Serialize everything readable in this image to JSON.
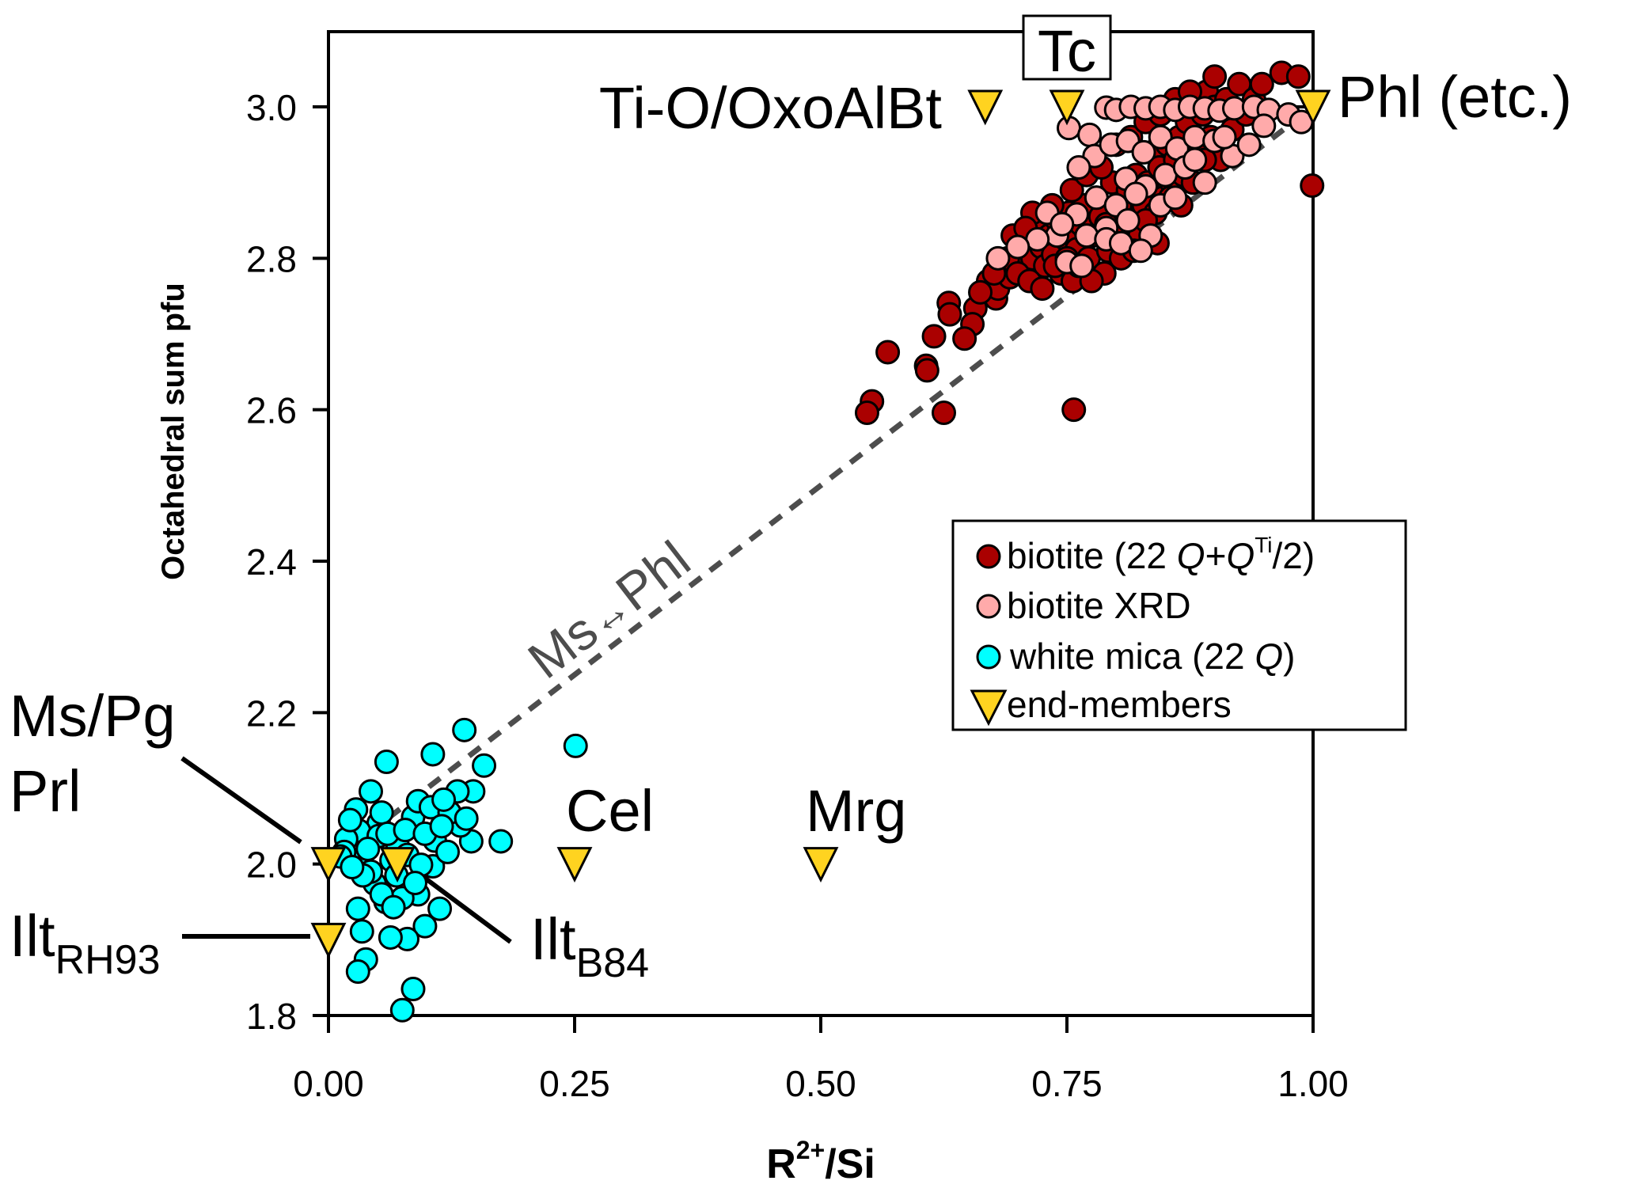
{
  "chart_data": {
    "type": "scatter",
    "title": "",
    "xlabel": "R2+/Si",
    "xlabel_main": "R",
    "xlabel_sup": "2+",
    "xlabel_tail": "/Si",
    "ylabel": "Octahedral sum pfu",
    "xlim": [
      0.0,
      1.0
    ],
    "ylim": [
      1.8,
      3.0
    ],
    "x_ticks": [
      0.0,
      0.25,
      0.5,
      0.75,
      1.0
    ],
    "x_tick_labels": [
      "0.00",
      "0.25",
      "0.50",
      "0.75",
      "1.00"
    ],
    "y_ticks": [
      1.8,
      2.0,
      2.2,
      2.4,
      2.6,
      2.8,
      3.0
    ],
    "y_tick_labels": [
      "1.8",
      "2.0",
      "2.2",
      "2.4",
      "2.6",
      "2.8",
      "3.0"
    ],
    "grid": false,
    "legend_position": "center-right",
    "legend": [
      {
        "key": "biotite",
        "text": "biotite (22 ",
        "italic": "Q",
        "text2": "+",
        "italic2": "Q",
        "sup": "Ti",
        "text3": "/2)",
        "marker": "circle",
        "color": "#AA0000"
      },
      {
        "key": "biotite_xrd",
        "text": "biotite XRD",
        "marker": "circle",
        "color": "#FFAAAA"
      },
      {
        "key": "white_mica",
        "text": "white mica (22 ",
        "italic": "Q",
        "text2": ")",
        "marker": "circle",
        "color": "#00FFFF"
      },
      {
        "key": "end_members",
        "text": "end-members",
        "marker": "triangle-down",
        "color": "#FFD320"
      }
    ],
    "trend_line": {
      "label_a": "Ms",
      "arrow": "↔",
      "label_b": "Phl",
      "from": [
        0.0,
        2.0
      ],
      "to": [
        1.0,
        3.0
      ],
      "color": "#4d4d4d",
      "style": "dashed"
    },
    "end_members": [
      {
        "name": "Ms/Pg Prl",
        "x": 0.0,
        "y": 2.0
      },
      {
        "name": "Ilt_B84",
        "x": 0.07,
        "y": 2.0
      },
      {
        "name": "Ilt_RH93",
        "x": 0.0,
        "y": 1.9
      },
      {
        "name": "Cel",
        "x": 0.25,
        "y": 2.0
      },
      {
        "name": "Mrg",
        "x": 0.5,
        "y": 2.0
      },
      {
        "name": "Ti-O/OxoAlBt",
        "x": 0.667,
        "y": 3.0
      },
      {
        "name": "Tc",
        "x": 0.75,
        "y": 3.0
      },
      {
        "name": "Phl (etc.)",
        "x": 1.0,
        "y": 3.0
      }
    ],
    "annotations": {
      "ms_pg": "Ms/Pg",
      "prl": "Prl",
      "ilt_rh93_main": "Ilt",
      "ilt_rh93_sub": "RH93",
      "ilt_b84_main": "Ilt",
      "ilt_b84_sub": "B84",
      "cel": "Cel",
      "mrg": "Mrg",
      "tioxo": "Ti-O/OxoAlBt",
      "tc": "Tc",
      "phl": "Phl (etc.)"
    },
    "series": [
      {
        "name": "white mica (22 Q)",
        "color": "#00FFFF",
        "points": [
          [
            0.138,
            2.177
          ],
          [
            0.106,
            2.145
          ],
          [
            0.059,
            2.135
          ],
          [
            0.251,
            2.156
          ],
          [
            0.158,
            2.13
          ],
          [
            0.147,
            2.096
          ],
          [
            0.131,
            2.096
          ],
          [
            0.043,
            2.096
          ],
          [
            0.175,
            2.03
          ],
          [
            0.145,
            2.03
          ],
          [
            0.134,
            2.051
          ],
          [
            0.086,
            1.835
          ],
          [
            0.075,
            1.807
          ],
          [
            0.038,
            1.874
          ],
          [
            0.03,
            1.858
          ],
          [
            0.113,
            1.941
          ],
          [
            0.098,
            1.918
          ],
          [
            0.08,
            1.901
          ],
          [
            0.063,
            1.903
          ],
          [
            0.034,
            1.911
          ],
          [
            0.03,
            1.941
          ],
          [
            0.058,
            1.95
          ],
          [
            0.091,
            1.96
          ],
          [
            0.075,
            1.955
          ],
          [
            0.047,
            1.974
          ],
          [
            0.106,
            1.997
          ],
          [
            0.027,
            2.004
          ],
          [
            0.043,
            1.99
          ],
          [
            0.108,
            2.031
          ],
          [
            0.086,
            2.062
          ],
          [
            0.091,
            2.083
          ],
          [
            0.104,
            2.075
          ],
          [
            0.123,
            2.068
          ],
          [
            0.051,
            2.054
          ],
          [
            0.031,
            2.044
          ],
          [
            0.028,
            2.072
          ],
          [
            0.054,
            2.068
          ],
          [
            0.07,
            2.026
          ],
          [
            0.051,
            2.037
          ],
          [
            0.018,
            2.033
          ],
          [
            0.016,
            2.016
          ],
          [
            0.064,
            2.005
          ],
          [
            0.08,
            2.012
          ],
          [
            0.094,
            1.999
          ],
          [
            0.121,
            2.016
          ],
          [
            0.054,
            1.96
          ],
          [
            0.066,
            1.943
          ],
          [
            0.012,
            2.01
          ],
          [
            0.022,
            2.058
          ],
          [
            0.04,
            2.02
          ],
          [
            0.06,
            2.04
          ],
          [
            0.078,
            2.045
          ],
          [
            0.098,
            2.04
          ],
          [
            0.115,
            2.05
          ],
          [
            0.035,
            1.985
          ],
          [
            0.069,
            1.985
          ],
          [
            0.088,
            1.975
          ],
          [
            0.024,
            1.996
          ],
          [
            0.14,
            2.06
          ],
          [
            0.117,
            2.085
          ]
        ]
      },
      {
        "name": "biotite (22 Q+QTi/2)",
        "color": "#AA0000",
        "points": [
          [
            0.552,
            2.611
          ],
          [
            0.547,
            2.596
          ],
          [
            0.568,
            2.676
          ],
          [
            0.607,
            2.658
          ],
          [
            0.608,
            2.652
          ],
          [
            0.625,
            2.596
          ],
          [
            0.615,
            2.697
          ],
          [
            0.63,
            2.741
          ],
          [
            0.631,
            2.726
          ],
          [
            0.657,
            2.734
          ],
          [
            0.654,
            2.713
          ],
          [
            0.646,
            2.694
          ],
          [
            0.678,
            2.747
          ],
          [
            0.757,
            2.6
          ],
          [
            0.999,
            2.896
          ],
          [
            0.67,
            2.77
          ],
          [
            0.68,
            2.76
          ],
          [
            0.688,
            2.79
          ],
          [
            0.692,
            2.775
          ],
          [
            0.7,
            2.81
          ],
          [
            0.705,
            2.795
          ],
          [
            0.71,
            2.825
          ],
          [
            0.715,
            2.8
          ],
          [
            0.72,
            2.84
          ],
          [
            0.724,
            2.815
          ],
          [
            0.728,
            2.79
          ],
          [
            0.732,
            2.83
          ],
          [
            0.736,
            2.805
          ],
          [
            0.74,
            2.85
          ],
          [
            0.744,
            2.78
          ],
          [
            0.748,
            2.826
          ],
          [
            0.752,
            2.86
          ],
          [
            0.756,
            2.77
          ],
          [
            0.76,
            2.812
          ],
          [
            0.764,
            2.845
          ],
          [
            0.768,
            2.87
          ],
          [
            0.772,
            2.8
          ],
          [
            0.776,
            2.83
          ],
          [
            0.78,
            2.88
          ],
          [
            0.784,
            2.855
          ],
          [
            0.788,
            2.78
          ],
          [
            0.792,
            2.81
          ],
          [
            0.796,
            2.9
          ],
          [
            0.8,
            2.84
          ],
          [
            0.804,
            2.87
          ],
          [
            0.808,
            2.82
          ],
          [
            0.812,
            2.89
          ],
          [
            0.816,
            2.85
          ],
          [
            0.82,
            2.91
          ],
          [
            0.824,
            2.83
          ],
          [
            0.828,
            2.87
          ],
          [
            0.832,
            2.9
          ],
          [
            0.836,
            2.94
          ],
          [
            0.84,
            2.86
          ],
          [
            0.844,
            2.92
          ],
          [
            0.848,
            2.88
          ],
          [
            0.852,
            2.95
          ],
          [
            0.856,
            2.9
          ],
          [
            0.86,
            2.93
          ],
          [
            0.864,
            2.96
          ],
          [
            0.868,
            2.91
          ],
          [
            0.872,
            2.98
          ],
          [
            0.876,
            2.94
          ],
          [
            0.88,
            3.0
          ],
          [
            0.884,
            2.95
          ],
          [
            0.888,
            2.99
          ],
          [
            0.892,
            3.02
          ],
          [
            0.896,
            2.96
          ],
          [
            0.9,
            3.0
          ],
          [
            0.906,
            2.93
          ],
          [
            0.912,
            3.01
          ],
          [
            0.918,
            2.97
          ],
          [
            0.925,
            3.03
          ],
          [
            0.932,
            2.99
          ],
          [
            0.94,
            3.01
          ],
          [
            0.948,
            3.03
          ],
          [
            0.968,
            3.045
          ],
          [
            0.985,
            3.04
          ],
          [
            0.69,
            2.8
          ],
          [
            0.7,
            2.78
          ],
          [
            0.712,
            2.77
          ],
          [
            0.725,
            2.76
          ],
          [
            0.738,
            2.79
          ],
          [
            0.75,
            2.8
          ],
          [
            0.762,
            2.79
          ],
          [
            0.775,
            2.77
          ],
          [
            0.79,
            2.845
          ],
          [
            0.805,
            2.8
          ],
          [
            0.818,
            2.81
          ],
          [
            0.83,
            2.85
          ],
          [
            0.842,
            2.82
          ],
          [
            0.855,
            2.88
          ],
          [
            0.866,
            2.87
          ],
          [
            0.878,
            2.9
          ],
          [
            0.89,
            2.93
          ],
          [
            0.715,
            2.86
          ],
          [
            0.735,
            2.87
          ],
          [
            0.755,
            2.89
          ],
          [
            0.77,
            2.91
          ],
          [
            0.785,
            2.92
          ],
          [
            0.8,
            2.95
          ],
          [
            0.815,
            2.96
          ],
          [
            0.83,
            2.98
          ],
          [
            0.845,
            2.99
          ],
          [
            0.86,
            3.01
          ],
          [
            0.875,
            3.02
          ],
          [
            0.9,
            3.04
          ],
          [
            0.662,
            2.755
          ],
          [
            0.676,
            2.78
          ],
          [
            0.695,
            2.83
          ],
          [
            0.708,
            2.84
          ]
        ]
      },
      {
        "name": "biotite XRD",
        "color": "#FFAAAA",
        "points": [
          [
            0.752,
            2.972
          ],
          [
            0.773,
            2.963
          ],
          [
            0.79,
            2.999
          ],
          [
            0.8,
            2.996
          ],
          [
            0.815,
            3.0
          ],
          [
            0.83,
            2.998
          ],
          [
            0.845,
            3.0
          ],
          [
            0.86,
            2.996
          ],
          [
            0.875,
            3.0
          ],
          [
            0.89,
            2.998
          ],
          [
            0.905,
            2.995
          ],
          [
            0.92,
            2.998
          ],
          [
            0.94,
            3.0
          ],
          [
            0.955,
            2.996
          ],
          [
            0.975,
            2.99
          ],
          [
            0.988,
            2.98
          ],
          [
            0.778,
            2.935
          ],
          [
            0.762,
            2.92
          ],
          [
            0.795,
            2.95
          ],
          [
            0.812,
            2.955
          ],
          [
            0.828,
            2.94
          ],
          [
            0.845,
            2.96
          ],
          [
            0.862,
            2.945
          ],
          [
            0.88,
            2.96
          ],
          [
            0.9,
            2.955
          ],
          [
            0.918,
            2.935
          ],
          [
            0.935,
            2.95
          ],
          [
            0.81,
            2.905
          ],
          [
            0.83,
            2.895
          ],
          [
            0.85,
            2.91
          ],
          [
            0.87,
            2.92
          ],
          [
            0.89,
            2.9
          ],
          [
            0.78,
            2.88
          ],
          [
            0.8,
            2.87
          ],
          [
            0.82,
            2.885
          ],
          [
            0.845,
            2.87
          ],
          [
            0.76,
            2.858
          ],
          [
            0.79,
            2.84
          ],
          [
            0.812,
            2.85
          ],
          [
            0.835,
            2.83
          ],
          [
            0.77,
            2.83
          ],
          [
            0.74,
            2.83
          ],
          [
            0.72,
            2.825
          ],
          [
            0.7,
            2.815
          ],
          [
            0.68,
            2.8
          ],
          [
            0.75,
            2.795
          ],
          [
            0.765,
            2.79
          ],
          [
            0.79,
            2.825
          ],
          [
            0.805,
            2.82
          ],
          [
            0.825,
            2.81
          ],
          [
            0.73,
            2.86
          ],
          [
            0.745,
            2.845
          ],
          [
            0.86,
            2.88
          ],
          [
            0.88,
            2.93
          ],
          [
            0.91,
            2.96
          ],
          [
            0.95,
            2.975
          ]
        ]
      }
    ]
  }
}
